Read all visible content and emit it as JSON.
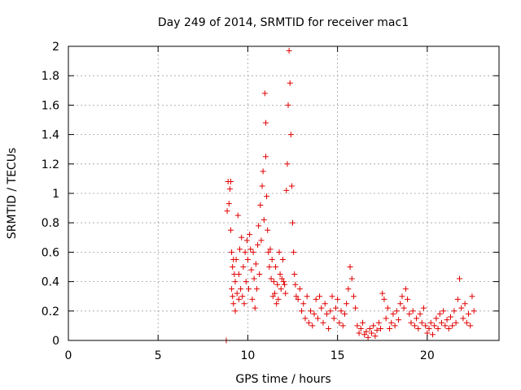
{
  "chart_data": {
    "type": "scatter",
    "title": "Day 249 of 2014, SRMTID for receiver mac1",
    "xlabel": "GPS time / hours",
    "ylabel": "SRMTID / TECUs",
    "xlim": [
      0,
      24
    ],
    "ylim": [
      0,
      2
    ],
    "xticks": [
      "0",
      "5",
      "10",
      "15",
      "20"
    ],
    "yticks": [
      "0",
      "0.2",
      "0.4",
      "0.6",
      "0.8",
      "1",
      "1.2",
      "1.4",
      "1.6",
      "1.8",
      "2"
    ],
    "xtick_values": [
      0,
      5,
      10,
      15,
      20
    ],
    "ytick_values": [
      0,
      0.2,
      0.4,
      0.6,
      0.8,
      1,
      1.2,
      1.4,
      1.6,
      1.8,
      2
    ],
    "grid": true,
    "marker_color": "#e00000",
    "marker": "plus",
    "series": [
      {
        "name": "",
        "points": [
          [
            8.8,
            0.0
          ],
          [
            8.85,
            0.88
          ],
          [
            8.9,
            1.08
          ],
          [
            8.95,
            0.93
          ],
          [
            9.0,
            1.03
          ],
          [
            9.05,
            1.08
          ],
          [
            9.05,
            0.75
          ],
          [
            9.1,
            0.6
          ],
          [
            9.1,
            0.35
          ],
          [
            9.15,
            0.5
          ],
          [
            9.15,
            0.3
          ],
          [
            9.2,
            0.55
          ],
          [
            9.2,
            0.25
          ],
          [
            9.25,
            0.45
          ],
          [
            9.3,
            0.4
          ],
          [
            9.3,
            0.2
          ],
          [
            9.35,
            0.55
          ],
          [
            9.4,
            0.32
          ],
          [
            9.45,
            0.85
          ],
          [
            9.5,
            0.45
          ],
          [
            9.5,
            0.28
          ],
          [
            9.55,
            0.62
          ],
          [
            9.6,
            0.35
          ],
          [
            9.65,
            0.7
          ],
          [
            9.7,
            0.3
          ],
          [
            9.75,
            0.5
          ],
          [
            9.8,
            0.25
          ],
          [
            9.85,
            0.6
          ],
          [
            9.9,
            0.4
          ],
          [
            9.95,
            0.68
          ],
          [
            10.0,
            0.55
          ],
          [
            10.05,
            0.35
          ],
          [
            10.1,
            0.72
          ],
          [
            10.15,
            0.62
          ],
          [
            10.2,
            0.48
          ],
          [
            10.25,
            0.28
          ],
          [
            10.3,
            0.6
          ],
          [
            10.35,
            0.42
          ],
          [
            10.4,
            0.22
          ],
          [
            10.45,
            0.52
          ],
          [
            10.5,
            0.35
          ],
          [
            10.55,
            0.65
          ],
          [
            10.6,
            0.78
          ],
          [
            10.65,
            0.45
          ],
          [
            10.7,
            0.92
          ],
          [
            10.75,
            0.68
          ],
          [
            10.8,
            1.05
          ],
          [
            10.85,
            1.15
          ],
          [
            10.9,
            0.82
          ],
          [
            10.95,
            1.68
          ],
          [
            11.0,
            1.48
          ],
          [
            11.0,
            1.25
          ],
          [
            11.05,
            0.98
          ],
          [
            11.1,
            0.75
          ],
          [
            11.15,
            0.6
          ],
          [
            11.2,
            0.5
          ],
          [
            11.25,
            0.62
          ],
          [
            11.3,
            0.42
          ],
          [
            11.35,
            0.55
          ],
          [
            11.4,
            0.3
          ],
          [
            11.45,
            0.4
          ],
          [
            11.5,
            0.32
          ],
          [
            11.55,
            0.5
          ],
          [
            11.6,
            0.25
          ],
          [
            11.65,
            0.38
          ],
          [
            11.7,
            0.28
          ],
          [
            11.75,
            0.6
          ],
          [
            11.8,
            0.45
          ],
          [
            11.85,
            0.35
          ],
          [
            11.9,
            0.42
          ],
          [
            11.95,
            0.55
          ],
          [
            12.0,
            0.4
          ],
          [
            12.05,
            0.38
          ],
          [
            12.1,
            0.32
          ],
          [
            12.15,
            1.02
          ],
          [
            12.2,
            1.2
          ],
          [
            12.25,
            1.6
          ],
          [
            12.3,
            1.97
          ],
          [
            12.35,
            1.75
          ],
          [
            12.4,
            1.4
          ],
          [
            12.45,
            1.05
          ],
          [
            12.5,
            0.8
          ],
          [
            12.55,
            0.6
          ],
          [
            12.6,
            0.45
          ],
          [
            12.65,
            0.38
          ],
          [
            12.7,
            0.3
          ],
          [
            12.8,
            0.28
          ],
          [
            12.9,
            0.35
          ],
          [
            13.0,
            0.2
          ],
          [
            13.1,
            0.25
          ],
          [
            13.2,
            0.15
          ],
          [
            13.3,
            0.3
          ],
          [
            13.4,
            0.12
          ],
          [
            13.5,
            0.2
          ],
          [
            13.6,
            0.1
          ],
          [
            13.7,
            0.18
          ],
          [
            13.8,
            0.28
          ],
          [
            13.9,
            0.15
          ],
          [
            14.0,
            0.3
          ],
          [
            14.1,
            0.22
          ],
          [
            14.2,
            0.12
          ],
          [
            14.3,
            0.25
          ],
          [
            14.4,
            0.18
          ],
          [
            14.5,
            0.08
          ],
          [
            14.6,
            0.2
          ],
          [
            14.7,
            0.3
          ],
          [
            14.8,
            0.15
          ],
          [
            14.9,
            0.22
          ],
          [
            15.0,
            0.28
          ],
          [
            15.1,
            0.12
          ],
          [
            15.2,
            0.2
          ],
          [
            15.3,
            0.1
          ],
          [
            15.4,
            0.18
          ],
          [
            15.5,
            0.25
          ],
          [
            15.6,
            0.35
          ],
          [
            15.7,
            0.5
          ],
          [
            15.8,
            0.42
          ],
          [
            15.9,
            0.3
          ],
          [
            16.0,
            0.22
          ],
          [
            16.1,
            0.1
          ],
          [
            16.2,
            0.05
          ],
          [
            16.3,
            0.08
          ],
          [
            16.4,
            0.12
          ],
          [
            16.5,
            0.04
          ],
          [
            16.6,
            0.06
          ],
          [
            16.7,
            0.02
          ],
          [
            16.8,
            0.08
          ],
          [
            16.9,
            0.05
          ],
          [
            17.0,
            0.1
          ],
          [
            17.1,
            0.03
          ],
          [
            17.2,
            0.07
          ],
          [
            17.3,
            0.12
          ],
          [
            17.4,
            0.08
          ],
          [
            17.5,
            0.32
          ],
          [
            17.6,
            0.28
          ],
          [
            17.7,
            0.15
          ],
          [
            17.8,
            0.22
          ],
          [
            17.9,
            0.08
          ],
          [
            18.0,
            0.12
          ],
          [
            18.1,
            0.18
          ],
          [
            18.2,
            0.1
          ],
          [
            18.3,
            0.2
          ],
          [
            18.4,
            0.14
          ],
          [
            18.5,
            0.25
          ],
          [
            18.6,
            0.3
          ],
          [
            18.7,
            0.22
          ],
          [
            18.8,
            0.35
          ],
          [
            18.9,
            0.28
          ],
          [
            19.0,
            0.18
          ],
          [
            19.1,
            0.12
          ],
          [
            19.2,
            0.2
          ],
          [
            19.3,
            0.1
          ],
          [
            19.4,
            0.15
          ],
          [
            19.5,
            0.08
          ],
          [
            19.6,
            0.18
          ],
          [
            19.7,
            0.12
          ],
          [
            19.8,
            0.22
          ],
          [
            19.9,
            0.1
          ],
          [
            20.0,
            0.05
          ],
          [
            20.1,
            0.08
          ],
          [
            20.2,
            0.12
          ],
          [
            20.3,
            0.04
          ],
          [
            20.4,
            0.1
          ],
          [
            20.5,
            0.15
          ],
          [
            20.6,
            0.08
          ],
          [
            20.7,
            0.18
          ],
          [
            20.8,
            0.12
          ],
          [
            20.9,
            0.2
          ],
          [
            21.0,
            0.1
          ],
          [
            21.1,
            0.14
          ],
          [
            21.2,
            0.08
          ],
          [
            21.3,
            0.16
          ],
          [
            21.4,
            0.1
          ],
          [
            21.5,
            0.2
          ],
          [
            21.6,
            0.12
          ],
          [
            21.7,
            0.28
          ],
          [
            21.8,
            0.42
          ],
          [
            21.9,
            0.22
          ],
          [
            22.0,
            0.15
          ],
          [
            22.1,
            0.25
          ],
          [
            22.2,
            0.12
          ],
          [
            22.3,
            0.18
          ],
          [
            22.4,
            0.1
          ],
          [
            22.5,
            0.3
          ],
          [
            22.6,
            0.2
          ]
        ]
      }
    ]
  }
}
